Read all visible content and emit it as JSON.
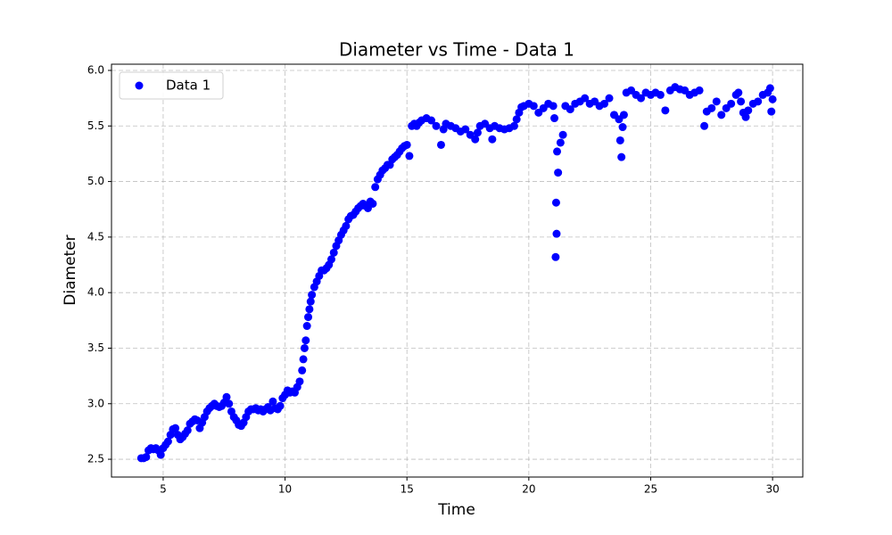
{
  "chart_data": {
    "type": "scatter",
    "title": "Diameter vs Time - Data 1",
    "x_label": "Time",
    "y_label": "Diameter",
    "xlim": [
      2.88,
      31.24
    ],
    "ylim": [
      2.34,
      6.056
    ],
    "xticks": [
      5,
      10,
      15,
      20,
      25,
      30
    ],
    "yticks": [
      2.5,
      {
        "value": 3,
        "label": "3.0"
      },
      3.5,
      {
        "value": 4,
        "label": "4.0"
      },
      4.5,
      {
        "value": 5,
        "label": "5.0"
      },
      5.5,
      {
        "value": 6,
        "label": "6.0"
      }
    ],
    "grid": true,
    "legend": "upper-left",
    "series": [
      {
        "name": "Data 1",
        "color": "#0000ff",
        "x": [
          4.1,
          4.2,
          4.3,
          4.4,
          4.5,
          4.6,
          4.7,
          4.8,
          4.9,
          5.0,
          5.1,
          5.2,
          5.3,
          5.4,
          5.5,
          5.6,
          5.7,
          5.8,
          5.9,
          6.0,
          6.1,
          6.2,
          6.3,
          6.4,
          6.5,
          6.6,
          6.7,
          6.8,
          6.9,
          7.0,
          7.1,
          7.2,
          7.3,
          7.4,
          7.5,
          7.6,
          7.7,
          7.8,
          7.9,
          8.0,
          8.1,
          8.2,
          8.3,
          8.4,
          8.5,
          8.6,
          8.7,
          8.8,
          8.9,
          9.0,
          9.1,
          9.2,
          9.3,
          9.4,
          9.5,
          9.6,
          9.7,
          9.8,
          9.9,
          10.0,
          10.1,
          10.2,
          10.3,
          10.4,
          10.5,
          10.6,
          10.7,
          10.75,
          10.8,
          10.85,
          10.9,
          10.95,
          11.0,
          11.05,
          11.1,
          11.2,
          11.3,
          11.4,
          11.5,
          11.6,
          11.7,
          11.8,
          11.9,
          12.0,
          12.1,
          12.2,
          12.3,
          12.4,
          12.5,
          12.6,
          12.7,
          12.8,
          12.9,
          13.0,
          13.1,
          13.2,
          13.3,
          13.4,
          13.5,
          13.6,
          13.7,
          13.8,
          13.9,
          14.0,
          14.1,
          14.2,
          14.3,
          14.4,
          14.5,
          14.6,
          14.7,
          14.8,
          14.9,
          15.0,
          15.1,
          15.2,
          15.3,
          15.4,
          15.5,
          15.6,
          15.8,
          16.0,
          16.2,
          16.4,
          16.5,
          16.6,
          16.8,
          17.0,
          17.2,
          17.4,
          17.6,
          17.8,
          17.9,
          18.0,
          18.2,
          18.4,
          18.5,
          18.6,
          18.8,
          19.0,
          19.2,
          19.4,
          19.5,
          19.6,
          19.7,
          19.8,
          20.0,
          20.2,
          20.4,
          20.6,
          20.8,
          21.0,
          21.05,
          21.1,
          21.12,
          21.14,
          21.16,
          21.2,
          21.3,
          21.4,
          21.5,
          21.7,
          21.9,
          22.1,
          22.3,
          22.5,
          22.7,
          22.9,
          23.1,
          23.3,
          23.5,
          23.7,
          23.75,
          23.8,
          23.85,
          23.9,
          24.0,
          24.2,
          24.4,
          24.6,
          24.8,
          25.0,
          25.2,
          25.4,
          25.6,
          25.8,
          26.0,
          26.2,
          26.4,
          26.6,
          26.8,
          27.0,
          27.2,
          27.3,
          27.5,
          27.7,
          27.9,
          28.1,
          28.3,
          28.5,
          28.6,
          28.7,
          28.8,
          28.9,
          29.0,
          29.2,
          29.4,
          29.6,
          29.8,
          29.9,
          29.95,
          30.0
        ],
        "values": [
          2.51,
          2.51,
          2.52,
          2.58,
          2.6,
          2.59,
          2.6,
          2.58,
          2.54,
          2.6,
          2.63,
          2.66,
          2.72,
          2.77,
          2.78,
          2.72,
          2.68,
          2.7,
          2.73,
          2.76,
          2.82,
          2.84,
          2.86,
          2.85,
          2.78,
          2.83,
          2.88,
          2.93,
          2.96,
          2.98,
          3.0,
          2.98,
          2.97,
          2.98,
          3.01,
          3.06,
          3.0,
          2.93,
          2.88,
          2.85,
          2.81,
          2.8,
          2.83,
          2.88,
          2.93,
          2.95,
          2.95,
          2.96,
          2.94,
          2.95,
          2.93,
          2.95,
          2.97,
          2.94,
          3.02,
          2.96,
          2.95,
          2.98,
          3.05,
          3.08,
          3.12,
          3.1,
          3.11,
          3.1,
          3.15,
          3.2,
          3.3,
          3.4,
          3.5,
          3.57,
          3.7,
          3.78,
          3.85,
          3.92,
          3.98,
          4.05,
          4.1,
          4.15,
          4.2,
          4.2,
          4.22,
          4.25,
          4.3,
          4.36,
          4.42,
          4.47,
          4.52,
          4.56,
          4.6,
          4.66,
          4.69,
          4.7,
          4.73,
          4.76,
          4.78,
          4.8,
          4.78,
          4.76,
          4.82,
          4.8,
          4.95,
          5.02,
          5.06,
          5.1,
          5.12,
          5.15,
          5.15,
          5.2,
          5.22,
          5.24,
          5.27,
          5.3,
          5.32,
          5.33,
          5.23,
          5.5,
          5.52,
          5.5,
          5.53,
          5.55,
          5.57,
          5.55,
          5.5,
          5.33,
          5.47,
          5.52,
          5.5,
          5.48,
          5.45,
          5.47,
          5.42,
          5.38,
          5.44,
          5.5,
          5.52,
          5.48,
          5.38,
          5.5,
          5.48,
          5.47,
          5.48,
          5.5,
          5.56,
          5.62,
          5.67,
          5.68,
          5.7,
          5.68,
          5.62,
          5.66,
          5.7,
          5.68,
          5.57,
          4.32,
          4.81,
          4.53,
          5.27,
          5.08,
          5.35,
          5.42,
          5.68,
          5.65,
          5.7,
          5.72,
          5.75,
          5.7,
          5.72,
          5.68,
          5.7,
          5.75,
          5.6,
          5.56,
          5.37,
          5.22,
          5.49,
          5.6,
          5.8,
          5.82,
          5.78,
          5.75,
          5.8,
          5.78,
          5.8,
          5.78,
          5.64,
          5.82,
          5.85,
          5.83,
          5.82,
          5.78,
          5.8,
          5.82,
          5.5,
          5.63,
          5.66,
          5.72,
          5.6,
          5.66,
          5.7,
          5.78,
          5.8,
          5.72,
          5.62,
          5.58,
          5.64,
          5.7,
          5.72,
          5.78,
          5.8,
          5.84,
          5.63,
          5.74
        ]
      }
    ]
  }
}
